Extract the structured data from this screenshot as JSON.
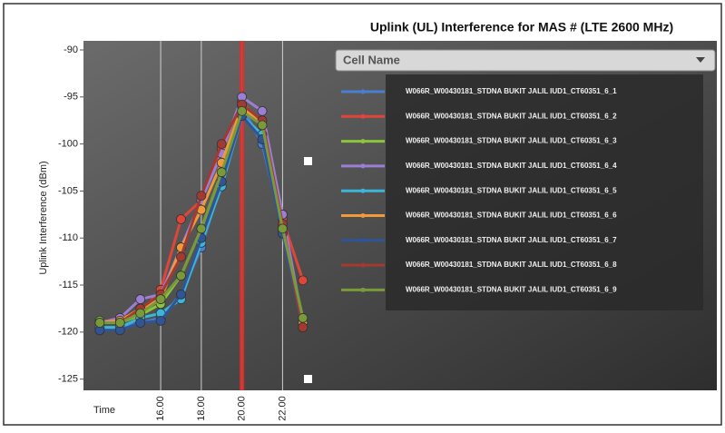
{
  "chart_data": {
    "type": "line",
    "title": "Uplink (UL) Interference for MAS # (LTE 2600 MHz)",
    "y_label": "Uplink Interference (dBm)",
    "x_label": "Time",
    "legend_title": "Cell Name",
    "x": [
      13,
      14,
      15,
      16,
      17,
      18,
      19,
      20,
      21,
      22,
      23
    ],
    "xlim": [
      12.2,
      23.5
    ],
    "xticks": [
      {
        "value": 16,
        "label": "16.00"
      },
      {
        "value": 18,
        "label": "18.00"
      },
      {
        "value": 20,
        "label": "20.00"
      },
      {
        "value": 22,
        "label": "22.00"
      }
    ],
    "ylim": [
      -126,
      -90
    ],
    "yticks": [
      -90,
      -95,
      -100,
      -105,
      -110,
      -115,
      -120,
      -125
    ],
    "grid": "x",
    "highlight_x": 20,
    "highlight_color": "#d9322e",
    "series": [
      {
        "name": "W066R_W00430181_STDNA BUKIT JALIL IUD1_CT60351_6_1",
        "color": "#4a7fd0",
        "values": [
          -119.8,
          -119.5,
          -119,
          -118.5,
          -116,
          -111,
          -104,
          -96,
          -100,
          -109,
          -119.5
        ]
      },
      {
        "name": "W066R_W00430181_STDNA BUKIT JALIL IUD1_CT60351_6_2",
        "color": "#e0453a",
        "values": [
          -119,
          -118.5,
          -118,
          -115.5,
          -108,
          -106,
          -100.5,
          -95.5,
          -98,
          -108,
          -114.5
        ]
      },
      {
        "name": "W066R_W00430181_STDNA BUKIT JALIL IUD1_CT60351_6_3",
        "color": "#8cc43c",
        "values": [
          -118.8,
          -119,
          -118.2,
          -117,
          -114,
          -109,
          -103,
          -96,
          -98,
          -109,
          -118.5
        ]
      },
      {
        "name": "W066R_W00430181_STDNA BUKIT JALIL IUD1_CT60351_6_4",
        "color": "#9b7fd4",
        "values": [
          -119,
          -118.5,
          -116.5,
          -116,
          -111,
          -106,
          -101,
          -95,
          -96.5,
          -107.5,
          -119
        ]
      },
      {
        "name": "W066R_W00430181_STDNA BUKIT JALIL IUD1_CT60351_6_5",
        "color": "#3cb6d8",
        "values": [
          -119.5,
          -119.5,
          -118.5,
          -118,
          -116.5,
          -110.5,
          -104.5,
          -97,
          -99,
          -109,
          -119
        ]
      },
      {
        "name": "W066R_W00430181_STDNA BUKIT JALIL IUD1_CT60351_6_6",
        "color": "#f09a3a",
        "values": [
          -119,
          -118.8,
          -117.5,
          -116.5,
          -111,
          -107,
          -102,
          -96,
          -98,
          -109.5,
          -119
        ]
      },
      {
        "name": "W066R_W00430181_STDNA BUKIT JALIL IUD1_CT60351_6_7",
        "color": "#2f5597",
        "values": [
          -119.8,
          -119.8,
          -119,
          -118.8,
          -116,
          -110,
          -104,
          -97,
          -99.5,
          -109.5,
          -119.5
        ]
      },
      {
        "name": "W066R_W00430181_STDNA BUKIT JALIL IUD1_CT60351_6_8",
        "color": "#a33a32",
        "values": [
          -119,
          -119,
          -117.5,
          -116,
          -112,
          -105.5,
          -100,
          -95.8,
          -97.5,
          -108.5,
          -119.5
        ]
      },
      {
        "name": "W066R_W00430181_STDNA BUKIT JALIL IUD1_CT60351_6_9",
        "color": "#7a9a3a",
        "values": [
          -119,
          -119,
          -118,
          -116.5,
          -114,
          -109,
          -103,
          -96.5,
          -98,
          -109,
          -118.5
        ]
      }
    ]
  }
}
